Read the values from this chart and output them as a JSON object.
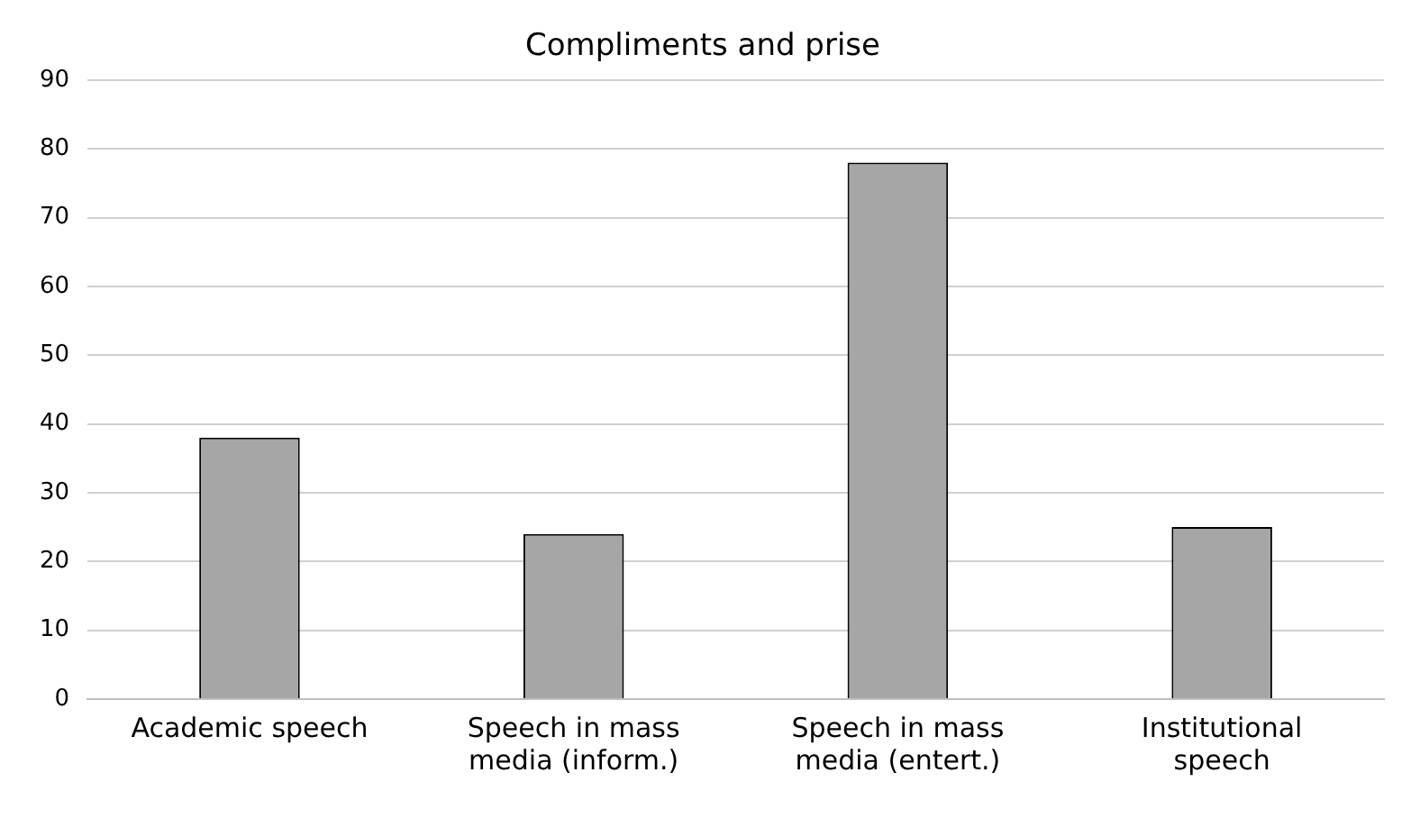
{
  "chart_data": {
    "type": "bar",
    "title": "Compliments and prise",
    "categories": [
      "Academic speech",
      "Speech in mass media (inform.)",
      "Speech in mass media (entert.)",
      "Institutional speech"
    ],
    "values": [
      38,
      24,
      78,
      25
    ],
    "color": "#a6a6a6",
    "ylim": [
      0,
      90
    ],
    "yticks": [
      0,
      10,
      20,
      30,
      40,
      50,
      60,
      70,
      80,
      90
    ],
    "grid": "y",
    "legend": false
  }
}
